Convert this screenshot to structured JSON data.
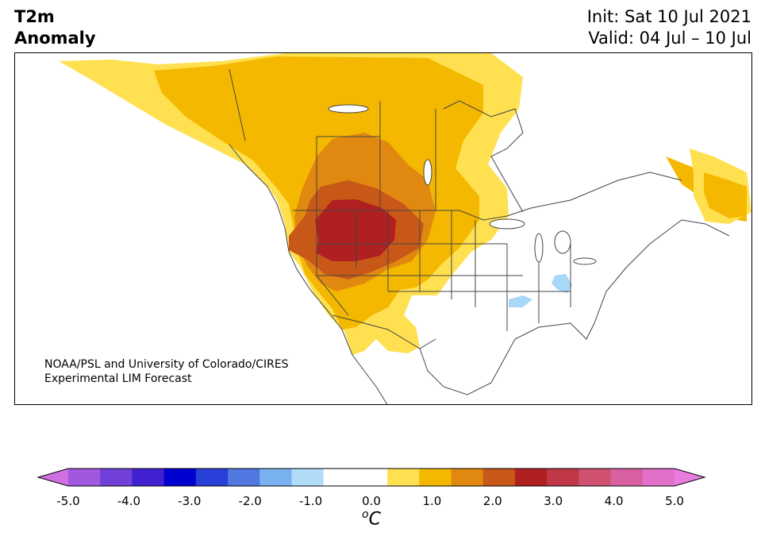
{
  "title": {
    "line1": "T2m",
    "line2": "Anomaly"
  },
  "init": {
    "line1": "Init: Sat 10 Jul 2021",
    "line2": "Valid: 04 Jul – 10 Jul"
  },
  "credit": {
    "line1": "NOAA/PSL and University of Colorado/CIRES",
    "line2": "Experimental LIM Forecast"
  },
  "colorbar": {
    "ticks": [
      "-5.0",
      "-4.0",
      "-3.0",
      "-2.0",
      "-1.0",
      "0.0",
      "1.0",
      "2.0",
      "3.0",
      "4.0",
      "5.0"
    ],
    "unit_sup": "o",
    "unit": "C",
    "colors": [
      "#d070e0",
      "#a058e0",
      "#7040d8",
      "#4020d0",
      "#0000d0",
      "#2840d8",
      "#5078e0",
      "#78b0f0",
      "#b0dcf8",
      "#ffffff",
      "#ffffff",
      "#ffe050",
      "#f4b800",
      "#e08810",
      "#c85818",
      "#b02020",
      "#c03848",
      "#d05070",
      "#d860a0",
      "#e070c8",
      "#e87ce0"
    ]
  },
  "map": {
    "anomaly_colors": {
      "light_yellow": "#ffe050",
      "gold": "#f4b800",
      "orange": "#e08810",
      "dark_orange": "#c85818",
      "red": "#b02020",
      "light_blue": "#a8d8f8"
    }
  }
}
